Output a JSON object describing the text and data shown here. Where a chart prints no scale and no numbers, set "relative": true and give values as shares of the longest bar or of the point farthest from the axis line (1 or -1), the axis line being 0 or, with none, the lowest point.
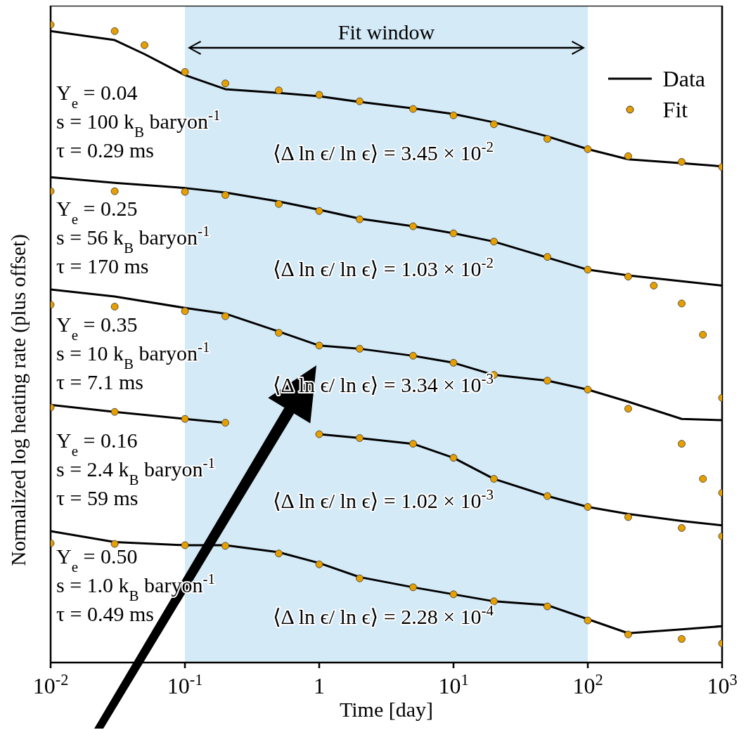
{
  "chart_data": {
    "type": "line",
    "relative": true,
    "xlabel": "Time [day]",
    "ylabel": "Normalized log heating rate (plus offset)",
    "log": "x",
    "xlim": [
      0.01,
      1000
    ],
    "xticks": [
      {
        "value": 0.01,
        "label": "10$^{-2}$"
      },
      {
        "value": 0.1,
        "label": "10$^{-1}$"
      },
      {
        "value": 1,
        "label": "1"
      },
      {
        "value": 10,
        "label": "10$^{1}$"
      },
      {
        "value": 100,
        "label": "10$^{2}$"
      },
      {
        "value": 1000,
        "label": "10$^{3}$"
      }
    ],
    "grid": false,
    "legend": "top right",
    "bands": [
      {
        "axis": "x",
        "from": 0.1,
        "to": 100,
        "label": "Fit window",
        "color": "#d4eaf7"
      }
    ],
    "annotations": [
      "Y$_{e}$ = 0.04",
      "s = 100 k$_{B}$ baryon$^{-1}$",
      "τ = 0.29 ms",
      "⟨Δ ln ϵ/ ln ϵ⟩ = 3.45 × 10$^{-2}$",
      "Y$_{e}$ = 0.25",
      "s = 56 k$_{B}$ baryon$^{-1}$",
      "τ = 170 ms",
      "⟨Δ ln ϵ/ ln ϵ⟩ = 1.03 × 10$^{-2}$",
      "Y$_{e}$ = 0.35",
      "s = 10 k$_{B}$ baryon$^{-1}$",
      "τ = 7.1 ms",
      "⟨Δ ln ϵ/ ln ϵ⟩ = 3.34 × 10$^{-3}$",
      "Y$_{e}$ = 0.16",
      "s = 2.4 k$_{B}$ baryon$^{-1}$",
      "τ = 59 ms",
      "⟨Δ ln ϵ/ ln ϵ⟩ = 1.02 × 10$^{-3}$",
      "Y$_{e}$ = 0.50",
      "s = 1.0 k$_{B}$ baryon$^{-1}$",
      "τ = 0.49 ms",
      "⟨Δ ln ϵ/ ln ϵ⟩ = 2.28 × 10$^{-4}$"
    ],
    "series": [
      {
        "name": "Data",
        "color": "#000000",
        "line_style": "solid",
        "x": [
          0.01,
          0.03,
          0.05,
          0.1,
          0.2,
          0.5,
          1,
          2,
          5,
          10,
          20,
          50,
          100,
          200,
          500,
          1000
        ],
        "values": [
          0.99,
          0.976,
          0.954,
          0.921,
          0.899,
          0.893,
          0.888,
          0.879,
          0.869,
          0.86,
          0.847,
          0.825,
          0.805,
          0.789,
          0.783,
          0.778
        ]
      },
      {
        "color": "#000000",
        "line_style": "solid",
        "x": [
          0.01,
          0.03,
          0.1,
          0.2,
          0.5,
          1,
          2,
          5,
          10,
          20,
          50,
          100,
          200,
          500,
          1000
        ],
        "values": [
          0.761,
          0.752,
          0.744,
          0.737,
          0.723,
          0.71,
          0.696,
          0.684,
          0.673,
          0.66,
          0.635,
          0.616,
          0.607,
          0.598,
          0.591
        ]
      },
      {
        "color": "#000000",
        "line_style": "solid",
        "x": [
          0.01,
          0.03,
          0.1,
          0.2,
          0.5,
          1,
          2,
          5,
          10,
          20,
          50,
          100,
          200,
          500,
          1000
        ],
        "values": [
          0.585,
          0.574,
          0.556,
          0.547,
          0.519,
          0.497,
          0.492,
          0.481,
          0.47,
          0.451,
          0.442,
          0.428,
          0.409,
          0.382,
          0.38
        ]
      },
      {
        "color": "#000000",
        "line_style": "solid",
        "x": [
          0.01,
          0.03,
          0.1,
          0.2,
          0.5,
          1,
          2,
          5,
          10,
          20,
          50,
          100,
          200,
          500,
          1000
        ],
        "values": [
          0.404,
          0.393,
          0.382,
          0.376,
          null,
          0.358,
          0.352,
          0.343,
          0.321,
          0.288,
          0.261,
          0.244,
          0.233,
          0.222,
          0.215
        ]
      },
      {
        "color": "#000000",
        "line_style": "solid",
        "x": [
          0.01,
          0.03,
          0.1,
          0.2,
          0.5,
          1,
          2,
          5,
          10,
          20,
          50,
          100,
          200,
          500,
          1000
        ],
        "values": [
          0.206,
          0.189,
          0.184,
          0.184,
          0.173,
          0.156,
          0.134,
          0.118,
          0.107,
          0.096,
          0.09,
          0.068,
          0.046,
          0.052,
          0.057
        ]
      },
      {
        "name": "Fit",
        "type": "scatter",
        "marker": "circle",
        "color": "#e69f00",
        "x": [
          0.01,
          0.03,
          0.05,
          0.1,
          0.2,
          0.5,
          1,
          2,
          5,
          10,
          20,
          50,
          100,
          200,
          500,
          1000
        ],
        "values": [
          1.0,
          0.99,
          0.968,
          0.926,
          0.908,
          0.897,
          0.89,
          0.88,
          0.868,
          0.858,
          0.844,
          0.821,
          0.805,
          0.794,
          0.785,
          0.777
        ]
      },
      {
        "type": "scatter",
        "marker": "circle",
        "color": "#e69f00",
        "x": [
          0.01,
          0.03,
          0.1,
          0.2,
          0.5,
          1,
          2,
          5,
          10,
          20,
          50,
          100,
          200,
          310,
          500,
          720,
          1000
        ],
        "values": [
          0.739,
          0.739,
          0.738,
          0.733,
          0.719,
          0.708,
          0.695,
          0.684,
          0.673,
          0.66,
          0.636,
          0.616,
          0.605,
          0.591,
          0.563,
          0.514,
          0.415
        ]
      },
      {
        "type": "scatter",
        "marker": "circle",
        "color": "#e69f00",
        "x": [
          0.01,
          0.03,
          0.1,
          0.2,
          0.5,
          1,
          2,
          5,
          10,
          20,
          50,
          100,
          200,
          500,
          720,
          1000
        ],
        "values": [
          0.561,
          0.558,
          0.551,
          0.543,
          0.517,
          0.497,
          0.492,
          0.481,
          0.47,
          0.451,
          0.442,
          0.428,
          0.398,
          0.343,
          0.288,
          0.266
        ]
      },
      {
        "type": "scatter",
        "marker": "circle",
        "color": "#e69f00",
        "x": [
          0.01,
          0.03,
          0.1,
          0.2,
          0.5,
          1,
          2,
          5,
          10,
          20,
          50,
          100,
          200,
          500,
          1000
        ],
        "values": [
          0.4,
          0.393,
          0.382,
          0.376,
          null,
          0.358,
          0.352,
          0.343,
          0.321,
          0.288,
          0.261,
          0.244,
          0.228,
          0.211,
          0.198
        ]
      },
      {
        "type": "scatter",
        "marker": "circle",
        "color": "#e69f00",
        "x": [
          0.01,
          0.03,
          0.1,
          0.2,
          0.5,
          1,
          2,
          5,
          10,
          20,
          50,
          100,
          200,
          500,
          1000
        ],
        "values": [
          0.187,
          0.186,
          0.184,
          0.183,
          0.171,
          0.154,
          0.132,
          0.118,
          0.107,
          0.096,
          0.088,
          0.066,
          0.044,
          0.037,
          0.03
        ]
      }
    ]
  }
}
